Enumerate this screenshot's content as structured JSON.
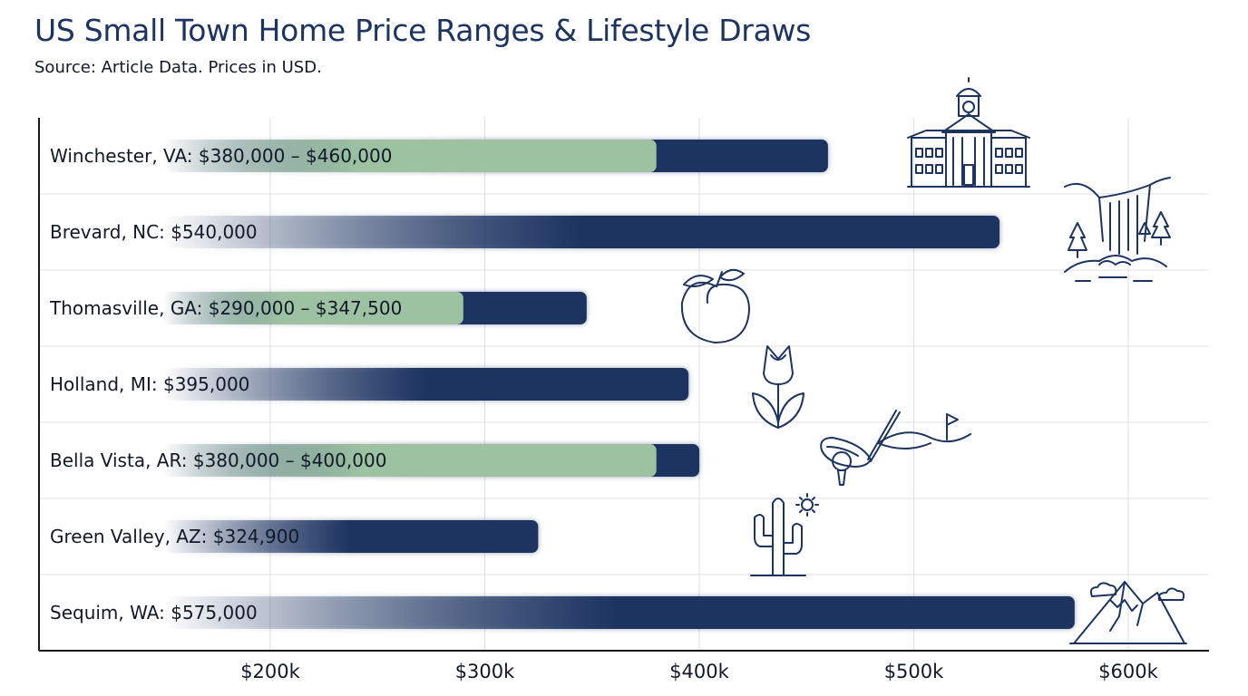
{
  "title": "US Small Town Home Price Ranges & Lifestyle Draws",
  "subtitle": "Source: Article Data. Prices in USD.",
  "colors": {
    "navy": "#1d3461",
    "sage": "#9cc2a2",
    "grid": "#dcdfe5",
    "axis": "#1a1a1a"
  },
  "chart_data": {
    "type": "bar",
    "orientation": "horizontal",
    "title": "US Small Town Home Price Ranges & Lifestyle Draws",
    "subtitle": "Source: Article Data. Prices in USD.",
    "xlim": [
      100000,
      640000
    ],
    "x_ticks": [
      200000,
      300000,
      400000,
      500000,
      600000
    ],
    "x_tick_labels": [
      "$200k",
      "$300k",
      "$400k",
      "$500k",
      "$600k"
    ],
    "grid": true,
    "categories": [
      "Winchester, VA",
      "Brevard, NC",
      "Thomasville, GA",
      "Holland, MI",
      "Bella Vista, AR",
      "Green Valley, AZ",
      "Sequim, WA"
    ],
    "bars": [
      {
        "town": "Winchester, VA",
        "label": "Winchester, VA: $380,000 – $460,000",
        "low": 380000,
        "high": 460000,
        "icon": "courthouse-icon"
      },
      {
        "town": "Brevard, NC",
        "label": "Brevard, NC: $540,000",
        "value": 540000,
        "icon": "waterfall-icon"
      },
      {
        "town": "Thomasville, GA",
        "label": "Thomasville, GA: $290,000 – $347,500",
        "low": 290000,
        "high": 347500,
        "icon": "peach-icon"
      },
      {
        "town": "Holland, MI",
        "label": "Holland, MI: $395,000",
        "value": 395000,
        "icon": "tulip-icon"
      },
      {
        "town": "Bella Vista, AR",
        "label": "Bella Vista, AR: $380,000 – $400,000",
        "low": 380000,
        "high": 400000,
        "icon": "golf-icon"
      },
      {
        "town": "Green Valley, AZ",
        "label": "Green Valley, AZ: $324,900",
        "value": 324900,
        "icon": "cactus-icon"
      },
      {
        "town": "Sequim, WA",
        "label": "Sequim, WA: $575,000",
        "value": 575000,
        "icon": "mountain-icon"
      }
    ]
  }
}
